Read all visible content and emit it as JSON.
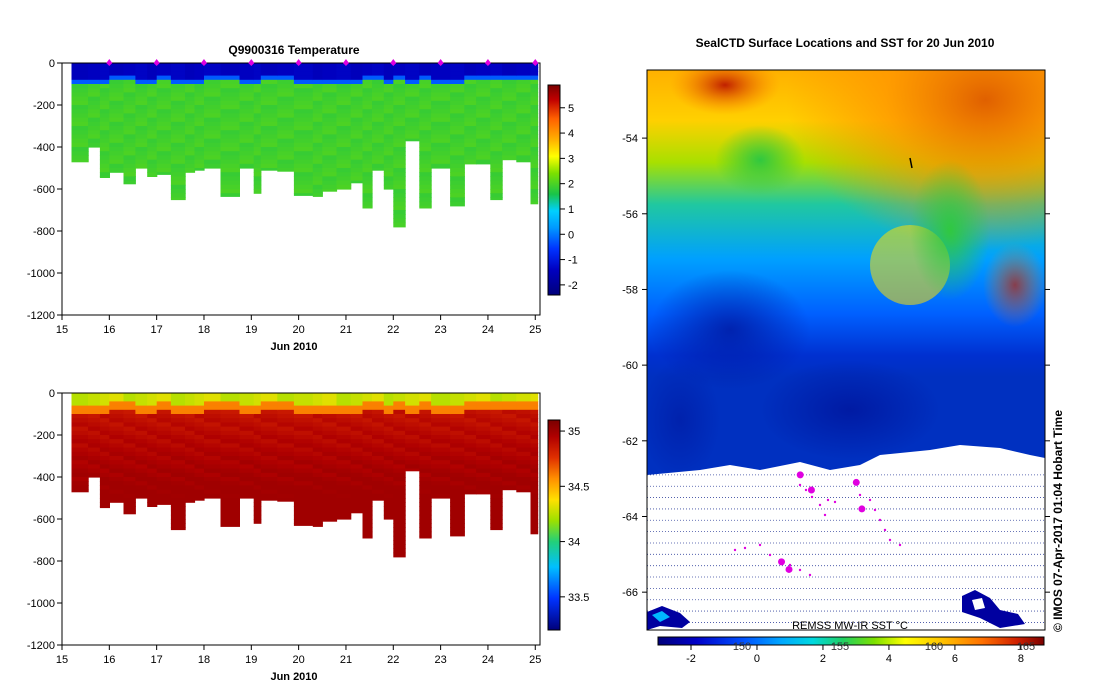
{
  "colors": {
    "temperature": [
      "#00007a",
      "#0000c0",
      "#0033ff",
      "#0099ff",
      "#00d0ff",
      "#19c44a",
      "#7ce000",
      "#ffff00",
      "#ffb000",
      "#ff6000",
      "#c00000",
      "#7a0000"
    ],
    "salinity": [
      "#00007a",
      "#0033ff",
      "#00c0ff",
      "#22d07a",
      "#9ce000",
      "#ffe000",
      "#ff9000",
      "#e03000",
      "#b00000",
      "#7a0000"
    ],
    "station_marker": "#e000e0",
    "ice_hatch": "#3a4aa0"
  },
  "chart_data": [
    {
      "type": "heatmap",
      "id": "temperature-section",
      "title": "Q9900316  Temperature",
      "xlabel": "Jun 2010",
      "ylabel": "",
      "xlim": [
        15,
        25.1
      ],
      "ylim": [
        -1200,
        0
      ],
      "xticks": [
        15,
        16,
        17,
        18,
        19,
        20,
        21,
        22,
        23,
        24,
        25
      ],
      "yticks": [
        0,
        -200,
        -400,
        -600,
        -800,
        -1000,
        -1200
      ],
      "colorbar": {
        "min": -2.4,
        "max": 5.9,
        "ticks": [
          5,
          4,
          3,
          2,
          1,
          0,
          -1,
          -2
        ]
      },
      "station_markers": [
        16,
        17,
        18,
        19,
        20,
        21,
        22,
        23,
        24,
        25
      ],
      "profiles": {
        "x_bins": [
          15.2,
          15.55,
          15.8,
          16.0,
          16.3,
          16.55,
          16.8,
          17.0,
          17.3,
          17.6,
          17.8,
          18.0,
          18.35,
          18.75,
          19.05,
          19.2,
          19.55,
          19.9,
          20.3,
          20.5,
          20.8,
          21.1,
          21.35,
          21.55,
          21.8,
          22.0,
          22.25,
          22.55,
          22.8,
          23.2,
          23.5,
          23.75,
          24.05,
          24.3,
          24.6,
          24.9,
          25.05
        ],
        "max_depth": [
          470,
          400,
          545,
          520,
          575,
          500,
          540,
          530,
          650,
          520,
          510,
          500,
          635,
          500,
          620,
          510,
          515,
          630,
          635,
          610,
          600,
          570,
          690,
          510,
          600,
          780,
          370,
          690,
          500,
          680,
          480,
          480,
          650,
          460,
          470,
          670
        ],
        "mixed_layer_depth": [
          90,
          85,
          85,
          80,
          80,
          85,
          85,
          80,
          85,
          85,
          85,
          80,
          80,
          85,
          85,
          80,
          80,
          85,
          85,
          90,
          90,
          85,
          80,
          80,
          85,
          80,
          85,
          80,
          85,
          85,
          80,
          80,
          80,
          75,
          75,
          70
        ],
        "surface_temperature": -1.7,
        "deep_temperature": 1.6
      }
    },
    {
      "type": "heatmap",
      "id": "salinity-section",
      "title": "",
      "xlabel": "Jun 2010",
      "ylabel": "",
      "xlim": [
        15,
        25.1
      ],
      "ylim": [
        -1200,
        0
      ],
      "xticks": [
        15,
        16,
        17,
        18,
        19,
        20,
        21,
        22,
        23,
        24,
        25
      ],
      "yticks": [
        0,
        -200,
        -400,
        -600,
        -800,
        -1000,
        -1200
      ],
      "colorbar": {
        "min": 33.2,
        "max": 35.1,
        "ticks": [
          35,
          34.5,
          34,
          33.5
        ],
        "tick_labels": [
          "35",
          "34.5",
          "34",
          "33.5"
        ]
      },
      "profiles": {
        "surface_salinity": 34.1,
        "deep_salinity": 34.95
      }
    },
    {
      "type": "heatmap",
      "id": "sst-map",
      "title": "SealCTD Surface Locations and SST for 20 Jun 2010",
      "xlabel": "",
      "ylabel": "",
      "ylim": [
        -67,
        -52.2
      ],
      "yticks": [
        -54,
        -56,
        -58,
        -60,
        -62,
        -64,
        -66
      ],
      "xticks": [
        150,
        155,
        160,
        165
      ],
      "colorbar": {
        "min": -3,
        "max": 8.7,
        "ticks": [
          -2,
          0,
          2,
          4,
          6,
          8
        ],
        "label": "REMSS MW-IR SST °C"
      },
      "ice_edge_latitude": -62.8,
      "seal_tracks": [
        {
          "lon": 153.5,
          "lat": -62.9
        },
        {
          "lon": 154.1,
          "lat": -63.3
        },
        {
          "lon": 156.5,
          "lat": -63.1
        },
        {
          "lon": 156.8,
          "lat": -63.8
        },
        {
          "lon": 152.5,
          "lat": -65.2
        },
        {
          "lon": 152.9,
          "lat": -65.4
        }
      ]
    }
  ],
  "credit": "©  IMOS 07-Apr-2017 01:04 Hobart Time"
}
